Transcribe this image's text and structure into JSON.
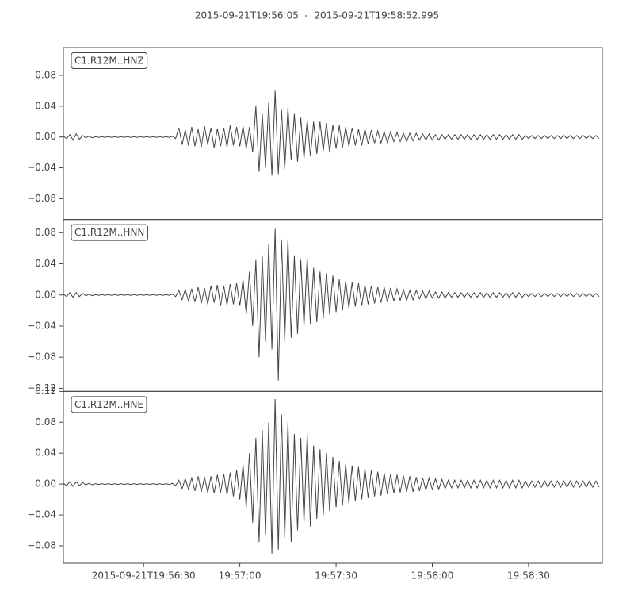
{
  "chart_data": {
    "type": "line",
    "title": "2015-09-21T19:56:05  -  2015-09-21T19:58:52.995",
    "x": [
      0,
      1,
      2,
      3,
      4,
      5,
      6,
      7,
      8,
      9,
      10,
      11,
      12,
      13,
      14,
      15,
      16,
      17,
      18,
      19,
      20,
      21,
      22,
      23,
      24,
      25,
      26,
      27,
      28,
      29,
      30,
      31,
      32,
      33,
      34,
      35,
      36,
      37,
      38,
      39,
      40,
      41,
      42,
      43,
      44,
      45,
      46,
      47,
      48,
      49,
      50,
      51,
      52,
      53,
      54,
      55,
      56,
      57,
      58,
      59,
      60,
      61,
      62,
      63,
      64,
      65,
      66,
      67,
      68,
      69,
      70,
      71,
      72,
      73,
      74,
      75,
      76,
      77,
      78,
      79,
      80,
      81,
      82,
      83,
      84,
      85,
      86,
      87,
      88,
      89,
      90,
      91,
      92,
      93,
      94,
      95,
      96,
      97,
      98,
      99,
      100,
      101,
      102,
      103,
      104,
      105,
      106,
      107,
      108,
      109,
      110,
      111,
      112,
      113,
      114,
      115,
      116,
      117,
      118,
      119,
      120,
      121,
      122,
      123,
      124,
      125,
      126,
      127,
      128,
      129,
      130,
      131,
      132,
      133,
      134,
      135,
      136,
      137,
      138,
      139,
      140,
      141,
      142,
      143,
      144,
      145,
      146,
      147,
      148,
      149,
      150,
      151,
      152,
      153,
      154,
      155,
      156,
      157,
      158,
      159,
      160,
      161,
      162,
      163,
      164,
      165,
      166,
      167
    ],
    "xlim": [
      0,
      167.995
    ],
    "xticks": [
      {
        "value": 25,
        "label": "2015-09-21T19:56:30"
      },
      {
        "value": 55,
        "label": "19:57:00"
      },
      {
        "value": 85,
        "label": "19:57:30"
      },
      {
        "value": 115,
        "label": "19:58:00"
      },
      {
        "value": 145,
        "label": "19:58:30"
      }
    ],
    "series": [
      {
        "name": "C1.R12M..HNZ",
        "color": "#444444",
        "ylim": [
          -0.107,
          0.116
        ],
        "yticks": [
          {
            "value": -0.08,
            "label": "−0.08"
          },
          {
            "value": -0.04,
            "label": "−0.04"
          },
          {
            "value": 0,
            "label": "0.00"
          },
          0.04,
          0.08
        ],
        "values": [
          0.001,
          -0.002,
          0.003,
          -0.004,
          0.004,
          -0.003,
          0.002,
          -0.001,
          0.001,
          -0.001,
          0.0005,
          -0.0005,
          0.0005,
          -0.0005,
          0.0005,
          -0.0005,
          0.0005,
          -0.0005,
          0.0005,
          -0.0005,
          0.0005,
          -0.0005,
          0.0005,
          -0.0005,
          0.0005,
          -0.0005,
          0.0005,
          -0.0005,
          0.0005,
          -0.0005,
          0.0005,
          -0.0005,
          0.0005,
          -0.0005,
          0.001,
          -0.002,
          0.012,
          -0.01,
          0.009,
          -0.011,
          0.013,
          -0.012,
          0.01,
          -0.013,
          0.014,
          -0.01,
          0.012,
          -0.014,
          0.011,
          -0.012,
          0.012,
          -0.013,
          0.015,
          -0.011,
          0.013,
          -0.012,
          0.014,
          -0.015,
          0.013,
          -0.02,
          0.04,
          -0.045,
          0.03,
          -0.04,
          0.045,
          -0.05,
          0.06,
          -0.048,
          0.035,
          -0.042,
          0.038,
          -0.03,
          0.03,
          -0.032,
          0.025,
          -0.028,
          0.022,
          -0.025,
          0.02,
          -0.022,
          0.02,
          -0.018,
          0.018,
          -0.02,
          0.016,
          -0.015,
          0.015,
          -0.014,
          0.013,
          -0.012,
          0.012,
          -0.011,
          0.01,
          -0.011,
          0.01,
          -0.009,
          0.009,
          -0.008,
          0.008,
          -0.008,
          0.007,
          -0.007,
          0.007,
          -0.006,
          0.006,
          -0.006,
          0.005,
          -0.006,
          0.005,
          -0.005,
          0.005,
          -0.004,
          0.004,
          -0.004,
          0.004,
          -0.004,
          0.003,
          -0.004,
          0.003,
          -0.003,
          0.003,
          -0.003,
          0.003,
          -0.003,
          0.003,
          -0.003,
          0.003,
          -0.003,
          0.003,
          -0.003,
          0.003,
          -0.003,
          0.003,
          -0.003,
          0.003,
          -0.003,
          0.003,
          -0.003,
          0.003,
          -0.003,
          0.003,
          -0.003,
          0.003,
          -0.003,
          0.002,
          -0.002,
          0.002,
          -0.002,
          0.002,
          -0.002,
          0.002,
          -0.002,
          0.002,
          -0.002,
          0.002,
          -0.002,
          0.002,
          -0.002,
          0.002,
          -0.002,
          0.002,
          -0.002,
          0.002,
          -0.002,
          0.002,
          -0.002,
          0.002,
          -0.002
        ]
      },
      {
        "name": "C1.R12M..HNN",
        "color": "#444444",
        "ylim": [
          -0.124,
          0.097
        ],
        "yticks": [
          {
            "value": -0.12,
            "label": "−0.12"
          },
          {
            "value": -0.08,
            "label": "−0.08"
          },
          {
            "value": -0.04,
            "label": "−0.04"
          },
          {
            "value": 0,
            "label": "0.00"
          },
          0.04,
          0.08
        ],
        "values": [
          0.001,
          -0.002,
          0.003,
          -0.003,
          0.003,
          -0.002,
          0.002,
          -0.001,
          0.001,
          -0.001,
          0.0005,
          -0.0005,
          0.0005,
          -0.0005,
          0.0005,
          -0.0005,
          0.0005,
          -0.0005,
          0.0005,
          -0.0005,
          0.0005,
          -0.0005,
          0.0005,
          -0.0005,
          0.0005,
          -0.0005,
          0.0005,
          -0.0005,
          0.0005,
          -0.0005,
          0.0005,
          -0.0005,
          0.0005,
          -0.0005,
          0.001,
          -0.002,
          0.006,
          -0.006,
          0.007,
          -0.008,
          0.008,
          -0.009,
          0.01,
          -0.011,
          0.009,
          -0.012,
          0.012,
          -0.01,
          0.013,
          -0.014,
          0.012,
          -0.013,
          0.014,
          -0.012,
          0.015,
          -0.014,
          0.02,
          -0.025,
          0.03,
          -0.04,
          0.045,
          -0.08,
          0.05,
          -0.06,
          0.065,
          -0.07,
          0.085,
          -0.11,
          0.07,
          -0.06,
          0.072,
          -0.055,
          0.05,
          -0.05,
          0.045,
          -0.04,
          0.048,
          -0.038,
          0.035,
          -0.035,
          0.03,
          -0.03,
          0.028,
          -0.025,
          0.025,
          -0.022,
          0.02,
          -0.02,
          0.018,
          -0.017,
          0.016,
          -0.015,
          0.015,
          -0.014,
          0.013,
          -0.012,
          0.012,
          -0.011,
          0.01,
          -0.01,
          0.01,
          -0.009,
          0.009,
          -0.008,
          0.008,
          -0.007,
          0.007,
          -0.007,
          0.006,
          -0.006,
          0.006,
          -0.005,
          0.005,
          -0.005,
          0.005,
          -0.004,
          0.004,
          -0.004,
          0.004,
          -0.004,
          0.003,
          -0.003,
          0.003,
          -0.003,
          0.003,
          -0.003,
          0.003,
          -0.003,
          0.003,
          -0.003,
          0.003,
          -0.003,
          0.003,
          -0.003,
          0.003,
          -0.003,
          0.003,
          -0.003,
          0.003,
          -0.003,
          0.003,
          -0.003,
          0.003,
          -0.003,
          0.002,
          -0.002,
          0.002,
          -0.002,
          0.002,
          -0.002,
          0.002,
          -0.002,
          0.002,
          -0.002,
          0.002,
          -0.002,
          0.002,
          -0.002,
          0.002,
          -0.002,
          0.002,
          -0.002,
          0.002,
          -0.002,
          0.002,
          -0.002,
          0.002,
          -0.002
        ]
      },
      {
        "name": "C1.R12M..HNE",
        "color": "#444444",
        "ylim": [
          -0.1026,
          0.12
        ],
        "yticks": [
          {
            "value": -0.08,
            "label": "−0.08"
          },
          {
            "value": -0.04,
            "label": "−0.04"
          },
          {
            "value": 0,
            "label": "0.00"
          },
          0.04,
          0.08,
          0.12
        ],
        "values": [
          0.001,
          -0.002,
          0.003,
          -0.003,
          0.003,
          -0.002,
          0.002,
          -0.001,
          0.001,
          -0.001,
          0.0005,
          -0.0005,
          0.0005,
          -0.0005,
          0.0005,
          -0.0005,
          0.0005,
          -0.0005,
          0.0005,
          -0.0005,
          0.0005,
          -0.0005,
          0.0005,
          -0.0005,
          0.0005,
          -0.0005,
          0.0005,
          -0.0005,
          0.0005,
          -0.0005,
          0.0005,
          -0.0005,
          0.0005,
          -0.0005,
          0.001,
          -0.002,
          0.005,
          -0.006,
          0.007,
          -0.007,
          0.008,
          -0.009,
          0.01,
          -0.01,
          0.009,
          -0.011,
          0.01,
          -0.012,
          0.012,
          -0.011,
          0.013,
          -0.014,
          0.015,
          -0.016,
          0.018,
          -0.02,
          0.025,
          -0.03,
          0.04,
          -0.05,
          0.06,
          -0.075,
          0.07,
          -0.065,
          0.08,
          -0.09,
          0.11,
          -0.085,
          0.09,
          -0.07,
          0.08,
          -0.075,
          0.065,
          -0.06,
          0.06,
          -0.05,
          0.065,
          -0.055,
          0.05,
          -0.045,
          0.045,
          -0.04,
          0.04,
          -0.035,
          0.035,
          -0.03,
          0.03,
          -0.028,
          0.026,
          -0.025,
          0.024,
          -0.022,
          0.022,
          -0.02,
          0.02,
          -0.018,
          0.018,
          -0.016,
          0.016,
          -0.015,
          0.014,
          -0.013,
          0.013,
          -0.012,
          0.012,
          -0.011,
          0.011,
          -0.01,
          0.01,
          -0.01,
          0.009,
          -0.009,
          0.008,
          -0.008,
          0.008,
          -0.007,
          0.007,
          -0.007,
          0.006,
          -0.006,
          0.005,
          -0.005,
          0.005,
          -0.005,
          0.005,
          -0.005,
          0.005,
          -0.005,
          0.005,
          -0.005,
          0.005,
          -0.005,
          0.005,
          -0.005,
          0.005,
          -0.005,
          0.005,
          -0.005,
          0.005,
          -0.005,
          0.005,
          -0.005,
          0.005,
          -0.005,
          0.004,
          -0.004,
          0.004,
          -0.004,
          0.004,
          -0.004,
          0.004,
          -0.004,
          0.004,
          -0.004,
          0.004,
          -0.004,
          0.004,
          -0.004,
          0.004,
          -0.004,
          0.004,
          -0.004,
          0.004,
          -0.004,
          0.004,
          -0.004,
          0.004,
          -0.004
        ]
      }
    ]
  }
}
